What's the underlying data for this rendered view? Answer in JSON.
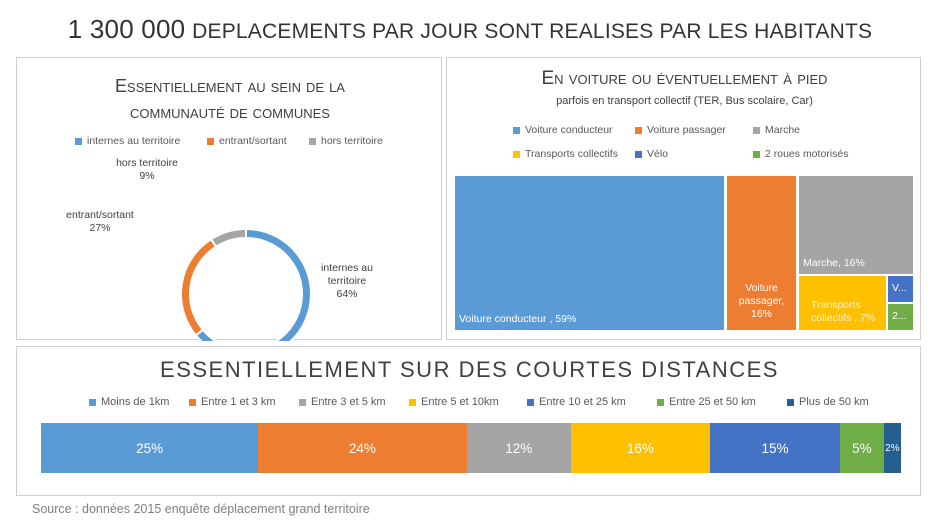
{
  "title": {
    "number": "1 300 000",
    "text": "DEPLACEMENTS PAR JOUR SONT REALISES PAR LES HABITANTS"
  },
  "source": "Source : données 2015 enquête déplacement grand territoire",
  "colors": {
    "blue": "#5b9bd5",
    "orange": "#ed7d31",
    "gray": "#a5a5a5",
    "yellow": "#ffc000",
    "darkblue": "#4472c4",
    "green": "#70ad47",
    "navy": "#255e91"
  },
  "chart_data": [
    {
      "type": "pie",
      "variant": "donut",
      "title_line1": "Essentiellement au sein de la",
      "title_line2": "communauté de communes",
      "legend_position": "top",
      "slices": [
        {
          "name": "internes au territoire",
          "value": 64,
          "color": "#5b9bd5",
          "label_l1": "internes au",
          "label_l2": "territoire",
          "pct": "64%"
        },
        {
          "name": "entrant/sortant",
          "value": 27,
          "color": "#ed7d31",
          "label_l1": "entrant/sortant",
          "label_l2": "",
          "pct": "27%"
        },
        {
          "name": "hors territoire",
          "value": 9,
          "color": "#a5a5a5",
          "label_l1": "hors territoire",
          "label_l2": "",
          "pct": "9%"
        }
      ]
    },
    {
      "type": "treemap",
      "title": "En voiture ou éventuellement à pied",
      "subtitle": "parfois en transport collectif (TER, Bus scolaire, Car)",
      "legend_position": "top",
      "items": [
        {
          "name": "Voiture conducteur",
          "value": 59,
          "color": "#5b9bd5",
          "label": "Voiture conducteur , 59%"
        },
        {
          "name": "Voiture passager",
          "value": 16,
          "color": "#ed7d31",
          "label_l1": "Voiture",
          "label_l2": "passager,",
          "label_l3": "16%"
        },
        {
          "name": "Marche",
          "value": 16,
          "color": "#a5a5a5",
          "label": "Marche, 16%"
        },
        {
          "name": "Transports collectifs",
          "value": 7,
          "color": "#ffc000",
          "label_l1": "Transports",
          "label_l2": "collectifs , 7%"
        },
        {
          "name": "Vélo",
          "value": 1,
          "color": "#4472c4",
          "label": "V..."
        },
        {
          "name": "2 roues motorisés",
          "value": 1,
          "color": "#70ad47",
          "label": "2..."
        }
      ]
    },
    {
      "type": "bar",
      "variant": "100%-stacked-horizontal",
      "title": "Essentiellement sur des courtes distances",
      "legend_position": "top",
      "series": [
        {
          "name": "Moins de 1km",
          "value": 25,
          "label": "25%",
          "color": "#5b9bd5"
        },
        {
          "name": "Entre 1 et 3 km",
          "value": 24,
          "label": "24%",
          "color": "#ed7d31"
        },
        {
          "name": "Entre 3 et 5 km",
          "value": 12,
          "label": "12%",
          "color": "#a5a5a5"
        },
        {
          "name": "Entre 5 et 10km",
          "value": 16,
          "label": "16%",
          "color": "#ffc000"
        },
        {
          "name": "Entre 10 et 25 km",
          "value": 15,
          "label": "15%",
          "color": "#4472c4"
        },
        {
          "name": "Entre 25 et 50 km",
          "value": 5,
          "label": "5%",
          "color": "#70ad47"
        },
        {
          "name": "Plus de 50 km",
          "value": 2,
          "label": "2%",
          "color": "#255e91"
        }
      ]
    }
  ]
}
